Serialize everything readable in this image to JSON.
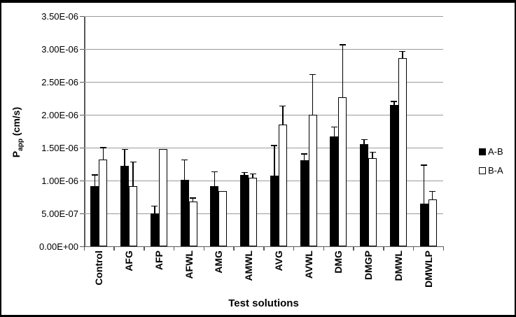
{
  "figure": {
    "background": "#ffffff",
    "border_color": "#000000"
  },
  "chart_data": {
    "type": "bar",
    "title": "",
    "xlabel": "Test solutions",
    "ylabel": {
      "main": "P",
      "sub": "app",
      "unit": " (cm/s)"
    },
    "categories": [
      "Control",
      "AFG",
      "AFP",
      "AFWL",
      "AMG",
      "AMWL",
      "AVG",
      "AVWL",
      "DMG",
      "DMGP",
      "DMWL",
      "DMWLP"
    ],
    "series": [
      {
        "name": "A-B",
        "fill": "#000000",
        "values": [
          9.1e-07,
          1.22e-06,
          5e-07,
          1.01e-06,
          9.1e-07,
          1.08e-06,
          1.07e-06,
          1.31e-06,
          1.67e-06,
          1.55e-06,
          2.15e-06,
          6.5e-07
        ],
        "errors_up": [
          1.7e-07,
          2.5e-07,
          1.1e-07,
          3e-07,
          2.2e-07,
          4e-08,
          4.6e-07,
          9e-08,
          1.4e-07,
          7e-08,
          5e-08,
          5.8e-07
        ]
      },
      {
        "name": "B-A",
        "fill": "#ffffff",
        "values": [
          1.32e-06,
          9.1e-07,
          1.48e-06,
          6.8e-07,
          8.4e-07,
          1.04e-06,
          1.85e-06,
          2e-06,
          2.27e-06,
          1.34e-06,
          2.86e-06,
          7.1e-07
        ],
        "errors_up": [
          1.8e-07,
          3.7e-07,
          0,
          5e-08,
          0,
          6e-08,
          2.8e-07,
          6.1e-07,
          7.9e-07,
          9e-08,
          1e-07,
          1.2e-07
        ]
      }
    ],
    "ylim": [
      0,
      3.5e-06
    ],
    "ytick_step": 5e-07,
    "ytick_labels": [
      "0.00E+00",
      "5.00E-07",
      "1.00E-06",
      "1.50E-06",
      "2.00E-06",
      "2.50E-06",
      "3.00E-06",
      "3.50E-06"
    ],
    "grid": true,
    "legend_position": "right-middle",
    "colors": {
      "grid": "#9a9a9a",
      "axis": "#595959",
      "bar_stroke": "#000000"
    }
  }
}
